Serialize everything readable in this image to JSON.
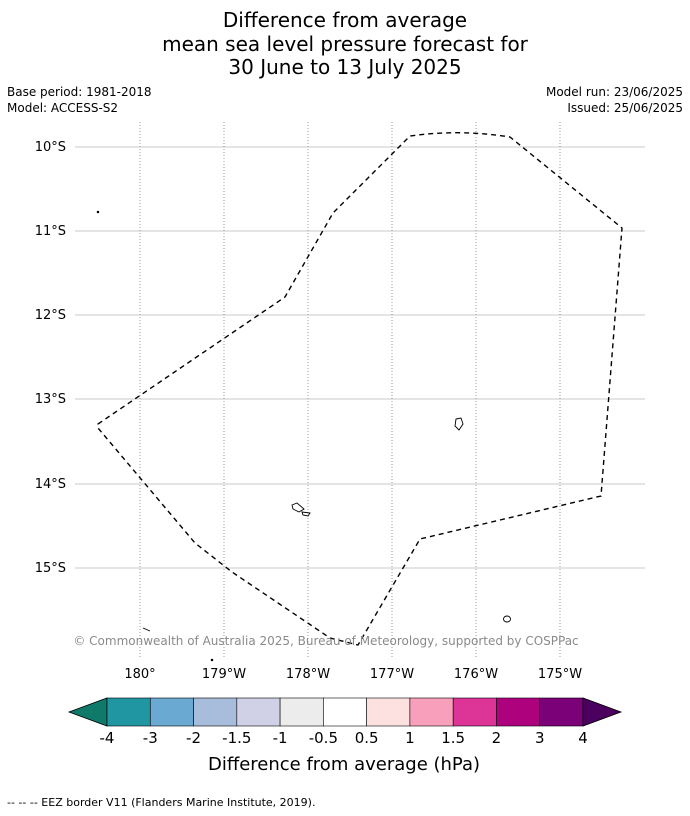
{
  "title": {
    "line1": "Difference from average",
    "line2": "mean sea level pressure forecast for",
    "line3": "30 June to 13 July 2025"
  },
  "meta": {
    "base_period": "Base period: 1981-2018",
    "model": "Model: ACCESS-S2",
    "model_run": "Model run: 23/06/2025",
    "issued": "Issued: 25/06/2025"
  },
  "map": {
    "lat_labels": [
      "10°S",
      "11°S",
      "12°S",
      "13°S",
      "14°S",
      "15°S"
    ],
    "lon_labels": [
      "180°",
      "179°W",
      "178°W",
      "177°W",
      "176°W",
      "175°W"
    ],
    "copyright": "© Commonwealth of Australia 2025, Bureau of Meteorology, supported by COSPPac"
  },
  "colorbar": {
    "label": "Difference from average (hPa)",
    "ticks": [
      "-4",
      "-3",
      "-2",
      "-1.5",
      "-1",
      "-0.5",
      "0.5",
      "1",
      "1.5",
      "2",
      "3",
      "4"
    ],
    "colors": [
      "#0f7a6a",
      "#1f96a1",
      "#6aa9d2",
      "#a8bcdc",
      "#d0d1e6",
      "#ececec",
      "#ffffff",
      "#fde0e0",
      "#f8a0bb",
      "#dd3497",
      "#ae017e",
      "#7a0177",
      "#4b005f"
    ]
  },
  "footnote": "--  --  -- EEZ border V11 (Flanders Marine Institute, 2019)."
}
